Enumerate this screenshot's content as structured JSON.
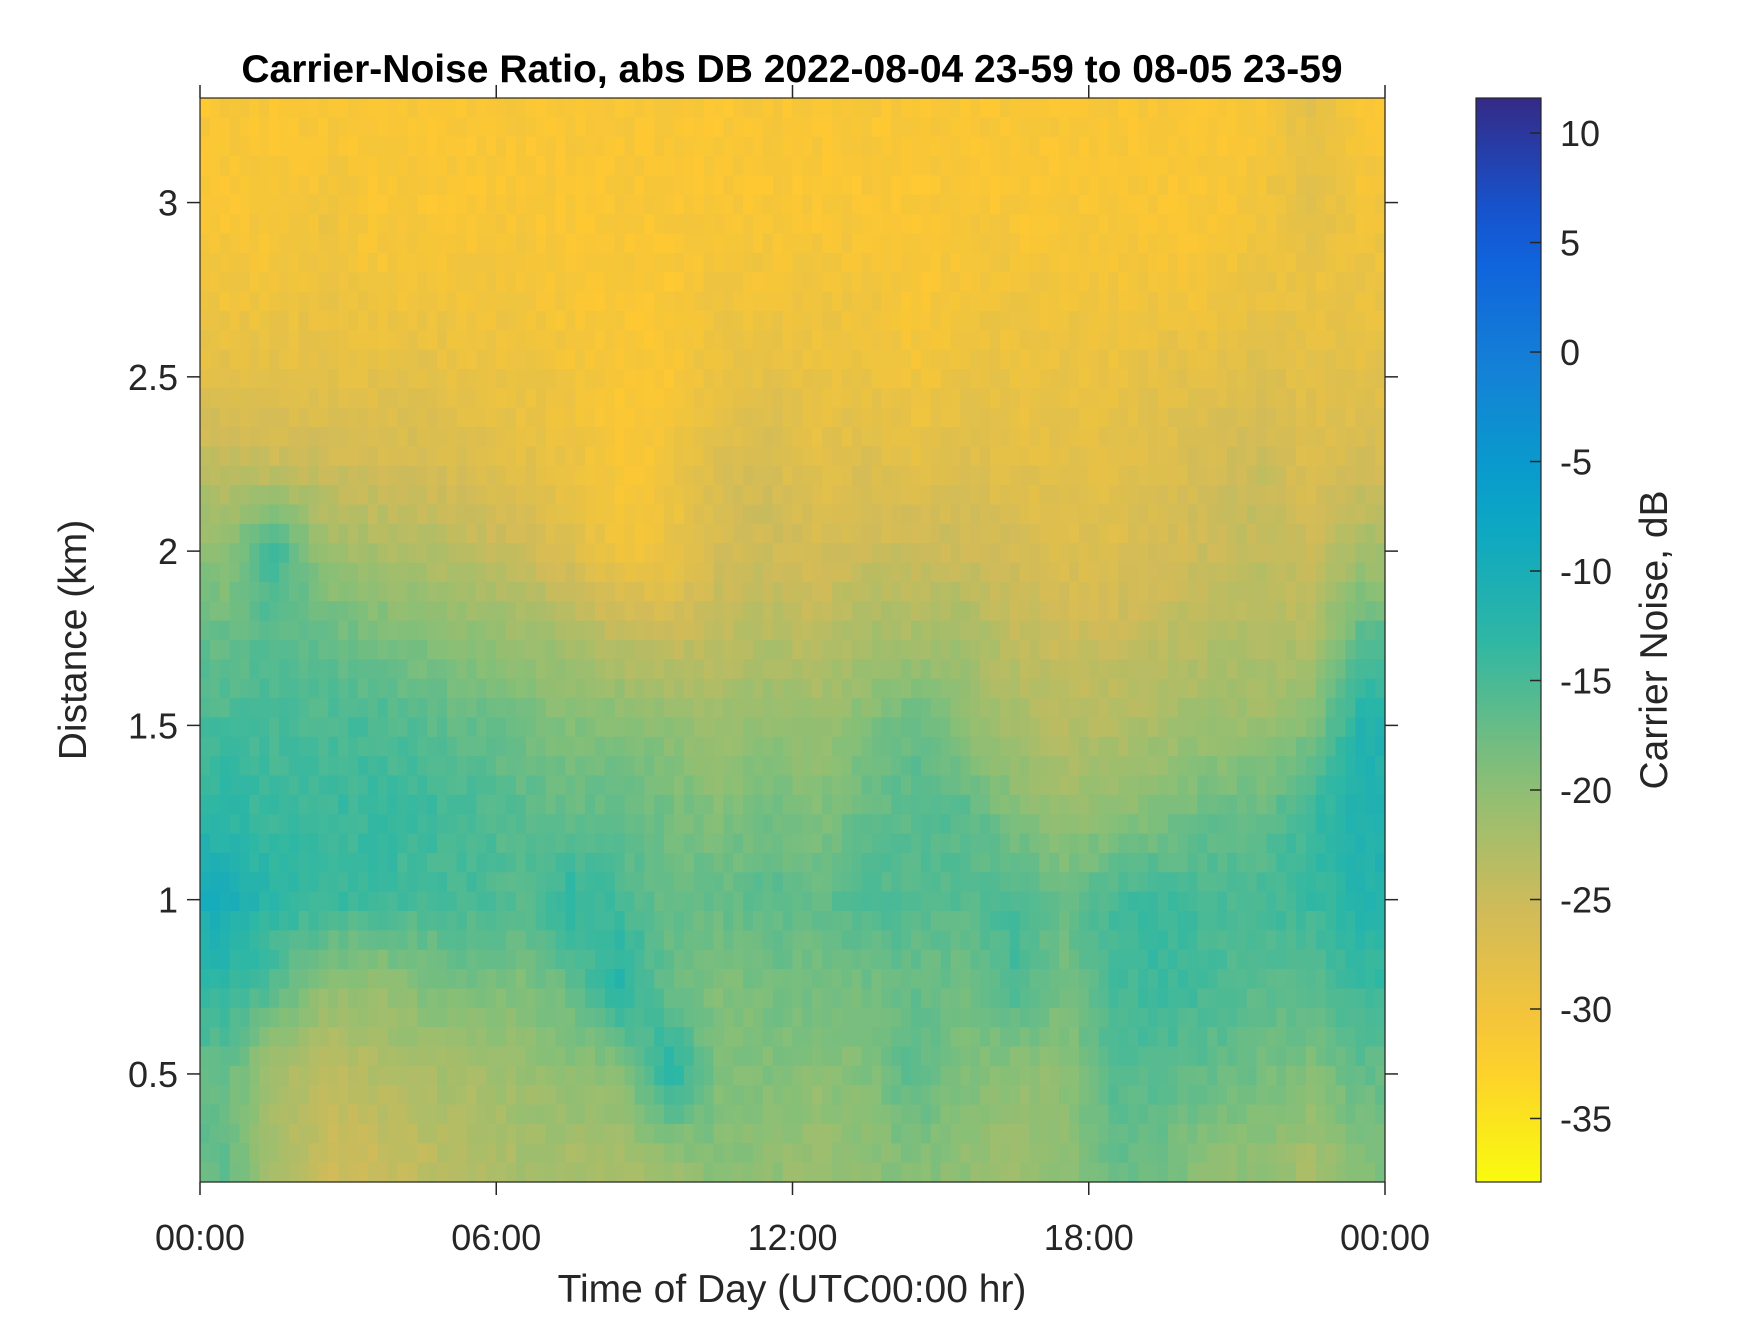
{
  "chart_data": {
    "type": "heatmap",
    "title": "Carrier-Noise Ratio, abs DB 2022-08-04 23-59 to 08-05 23-59",
    "xlabel": "Time of Day (UTC00:00 hr)",
    "ylabel": "Distance (km)",
    "colorbar_label": "Carrier Noise, dB",
    "colormap": "parula (reversed: low values yellow, high values dark blue)",
    "xlim_hours": [
      0,
      24
    ],
    "ylim": [
      0.19,
      3.3
    ],
    "clim": [
      -37.9,
      11.6
    ],
    "x_ticks": [
      0,
      6,
      12,
      18,
      24
    ],
    "x_tick_labels": [
      "00:00",
      "06:00",
      "12:00",
      "18:00",
      "00:00"
    ],
    "y_ticks": [
      0.5,
      1,
      1.5,
      2,
      2.5,
      3
    ],
    "y_tick_labels": [
      "0.5",
      "1",
      "1.5",
      "2",
      "2.5",
      "3"
    ],
    "colorbar_ticks": [
      10,
      5,
      0,
      -5,
      -10,
      -15,
      -20,
      -25,
      -30,
      -35
    ],
    "colorbar_tick_labels": [
      "10",
      "5",
      "0",
      "-5",
      "-10",
      "-15",
      "-20",
      "-25",
      "-30",
      "-35"
    ],
    "x_hours": [
      0.5,
      1.5,
      2.5,
      3.5,
      4.5,
      5.5,
      6.5,
      7.5,
      8.5,
      9.5,
      10.5,
      11.5,
      12.5,
      13.5,
      14.5,
      15.5,
      16.5,
      17.5,
      18.5,
      19.5,
      20.5,
      21.5,
      22.5,
      23.5
    ],
    "y_km": [
      0.25,
      0.5,
      0.75,
      1.0,
      1.25,
      1.5,
      1.75,
      2.0,
      2.25,
      2.5,
      2.75,
      3.0,
      3.25
    ],
    "values_db_by_hour": [
      [
        -17,
        -17,
        -13,
        -10,
        -13,
        -15,
        -17,
        -20,
        -24,
        -28,
        -30,
        -31,
        -31
      ],
      [
        -22,
        -22,
        -16,
        -13,
        -14,
        -15,
        -16,
        -14,
        -25,
        -28,
        -30,
        -31,
        -31
      ],
      [
        -25,
        -24,
        -20,
        -14,
        -14,
        -15,
        -17,
        -21,
        -25,
        -28,
        -29,
        -30,
        -31
      ],
      [
        -25,
        -23,
        -21,
        -14,
        -14,
        -15,
        -18,
        -22,
        -26,
        -28,
        -30,
        -31,
        -31
      ],
      [
        -24,
        -22,
        -19,
        -15,
        -14,
        -16,
        -19,
        -23,
        -26,
        -28,
        -30,
        -31,
        -31
      ],
      [
        -23,
        -22,
        -18,
        -15,
        -15,
        -17,
        -20,
        -24,
        -27,
        -29,
        -30,
        -31,
        -31
      ],
      [
        -22,
        -21,
        -19,
        -16,
        -16,
        -18,
        -21,
        -25,
        -28,
        -29,
        -30,
        -31,
        -31
      ],
      [
        -22,
        -20,
        -17,
        -13,
        -17,
        -19,
        -22,
        -27,
        -29,
        -30,
        -31,
        -31,
        -31
      ],
      [
        -22,
        -20,
        -12,
        -15,
        -17,
        -19,
        -24,
        -30,
        -31,
        -31,
        -31,
        -31,
        -31
      ],
      [
        -21,
        -12,
        -17,
        -17,
        -18,
        -20,
        -25,
        -29,
        -30,
        -31,
        -31,
        -31,
        -31
      ],
      [
        -19,
        -19,
        -19,
        -17,
        -19,
        -21,
        -24,
        -26,
        -27,
        -29,
        -30,
        -31,
        -31
      ],
      [
        -20,
        -19,
        -18,
        -16,
        -18,
        -20,
        -23,
        -25,
        -26,
        -28,
        -30,
        -31,
        -31
      ],
      [
        -21,
        -20,
        -18,
        -17,
        -19,
        -21,
        -24,
        -26,
        -28,
        -29,
        -30,
        -31,
        -31
      ],
      [
        -20,
        -19,
        -18,
        -15,
        -17,
        -19,
        -22,
        -25,
        -27,
        -29,
        -30,
        -31,
        -31
      ],
      [
        -19,
        -16,
        -17,
        -16,
        -16,
        -17,
        -22,
        -25,
        -28,
        -30,
        -31,
        -31,
        -31
      ],
      [
        -20,
        -19,
        -18,
        -16,
        -16,
        -20,
        -22,
        -25,
        -27,
        -29,
        -30,
        -31,
        -31
      ],
      [
        -21,
        -20,
        -15,
        -15,
        -19,
        -22,
        -24,
        -26,
        -28,
        -29,
        -30,
        -31,
        -31
      ],
      [
        -20,
        -20,
        -18,
        -17,
        -21,
        -23,
        -25,
        -27,
        -28,
        -29,
        -30,
        -31,
        -31
      ],
      [
        -17,
        -16,
        -15,
        -15,
        -20,
        -23,
        -25,
        -27,
        -28,
        -29,
        -30,
        -31,
        -31
      ],
      [
        -18,
        -16,
        -14,
        -14,
        -19,
        -22,
        -24,
        -26,
        -27,
        -28,
        -30,
        -31,
        -31
      ],
      [
        -20,
        -17,
        -15,
        -15,
        -17,
        -21,
        -23,
        -25,
        -26,
        -28,
        -30,
        -31,
        -31
      ],
      [
        -20,
        -18,
        -16,
        -15,
        -17,
        -21,
        -23,
        -24,
        -25,
        -27,
        -29,
        -30,
        -31
      ],
      [
        -22,
        -19,
        -16,
        -14,
        -14,
        -19,
        -23,
        -25,
        -27,
        -28,
        -29,
        -28,
        -28
      ],
      [
        -19,
        -17,
        -14,
        -12,
        -11,
        -12,
        -16,
        -22,
        -26,
        -28,
        -29,
        -30,
        -31
      ]
    ]
  }
}
